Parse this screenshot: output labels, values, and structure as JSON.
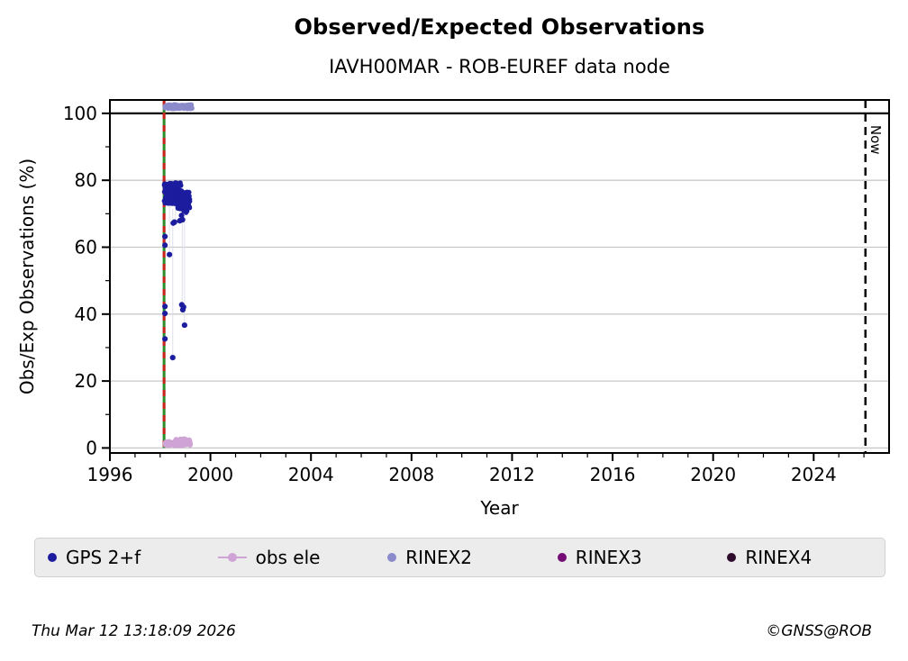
{
  "header": {
    "title": "Observed/Expected Observations",
    "subtitle": "IAVH00MAR - ROB-EUREF data node"
  },
  "chart_data": {
    "type": "scatter",
    "title": "Observed/Expected Observations",
    "subtitle": "IAVH00MAR - ROB-EUREF data node",
    "xlabel": "Year",
    "ylabel": "Obs/Exp Observations (%)",
    "xlim": [
      1996,
      2027
    ],
    "ylim": [
      -1.5,
      104
    ],
    "xticks_major": [
      1996,
      2000,
      2004,
      2008,
      2012,
      2016,
      2020,
      2024
    ],
    "xticks_minor_step": 1,
    "yticks_major": [
      0,
      20,
      40,
      60,
      80,
      100
    ],
    "yticks_minor": [
      10,
      30,
      50,
      70,
      90
    ],
    "grid": {
      "horizontal": true,
      "vertical": false,
      "color": "#c9c9c9"
    },
    "hline_100": {
      "y": 100,
      "color": "#000000"
    },
    "annotations": {
      "event_line": {
        "x": 1998.155,
        "style": "solid-green-with-red-dashes",
        "color_solid": "#2a8c2a",
        "color_dash": "#cc2222",
        "y0": 0,
        "y1": 104
      },
      "now_line": {
        "x": 2026.06,
        "label": "Now",
        "style": "dashed-black"
      }
    },
    "series": [
      {
        "name": "GPS 2+f",
        "color": "#1c1c9e",
        "marker": "dot",
        "points": [
          [
            1998.19,
            63.2
          ],
          [
            1998.19,
            60.6
          ],
          [
            1998.37,
            57.8
          ],
          [
            1998.52,
            67.2
          ],
          [
            1998.57,
            67.5
          ],
          [
            1998.78,
            67.9
          ],
          [
            1998.85,
            69.5
          ],
          [
            1998.89,
            68.2
          ],
          [
            1998.19,
            42.3
          ],
          [
            1998.19,
            40.2
          ],
          [
            1998.86,
            42.8
          ],
          [
            1998.9,
            41.3
          ],
          [
            1998.93,
            42.1
          ],
          [
            1998.97,
            36.7
          ],
          [
            1998.19,
            32.6
          ],
          [
            1998.5,
            27.0
          ]
        ],
        "clusters": [
          {
            "x0": 1998.16,
            "x1": 1998.85,
            "y0": 73.0,
            "y1": 79.3,
            "n": 230,
            "r": 2.7,
            "seed": 11
          },
          {
            "x0": 1998.7,
            "x1": 1999.18,
            "y0": 71.4,
            "y1": 76.8,
            "n": 150,
            "r": 2.7,
            "seed": 22
          },
          {
            "x0": 1998.92,
            "x1": 1999.1,
            "y0": 70.3,
            "y1": 72.2,
            "n": 18,
            "r": 2.6,
            "seed": 33
          }
        ]
      },
      {
        "name": "obs ele",
        "color": "#cfa3d5",
        "marker": "dot-line",
        "points": [],
        "clusters": [
          {
            "x0": 1998.18,
            "x1": 1998.65,
            "y0": 0.8,
            "y1": 1.9,
            "n": 35,
            "r": 2.8,
            "seed": 55
          },
          {
            "x0": 1998.55,
            "x1": 1999.2,
            "y0": 0.8,
            "y1": 2.7,
            "n": 70,
            "r": 2.9,
            "seed": 66
          }
        ]
      },
      {
        "name": "RINEX2",
        "color": "#8b8bcb",
        "marker": "dot",
        "points": [],
        "clusters": [
          {
            "x0": 1998.16,
            "x1": 1999.27,
            "y0": 101.4,
            "y1": 102.6,
            "n": 90,
            "r": 2.8,
            "seed": 44
          }
        ]
      },
      {
        "name": "RINEX3",
        "color": "#740d74",
        "marker": "dot",
        "points": [],
        "clusters": []
      },
      {
        "name": "RINEX4",
        "color": "#2d0b2d",
        "marker": "dot",
        "points": [],
        "clusters": []
      }
    ],
    "connector_lines": [
      {
        "x": 1998.37,
        "y0": 72.5,
        "y1": 58.2
      },
      {
        "x": 1998.5,
        "y0": 71.5,
        "y1": 27.4
      },
      {
        "x": 1998.61,
        "y0": 71.5,
        "y1": 67.8
      },
      {
        "x": 1998.88,
        "y0": 70.0,
        "y1": 41.6
      },
      {
        "x": 1998.97,
        "y0": 69.0,
        "y1": 37.1
      }
    ],
    "legend_position": "bottom"
  },
  "legend": {
    "items": [
      {
        "label": "GPS 2+f",
        "color": "#1c1c9e",
        "line": false
      },
      {
        "label": "obs ele",
        "color": "#cfa3d5",
        "line": true
      },
      {
        "label": "RINEX2",
        "color": "#8b8bcb",
        "line": false
      },
      {
        "label": "RINEX3",
        "color": "#740d74",
        "line": false
      },
      {
        "label": "RINEX4",
        "color": "#2d0b2d",
        "line": false
      }
    ]
  },
  "footer": {
    "timestamp": "Thu Mar 12 13:18:09 2026",
    "credit": "©GNSS@ROB"
  }
}
